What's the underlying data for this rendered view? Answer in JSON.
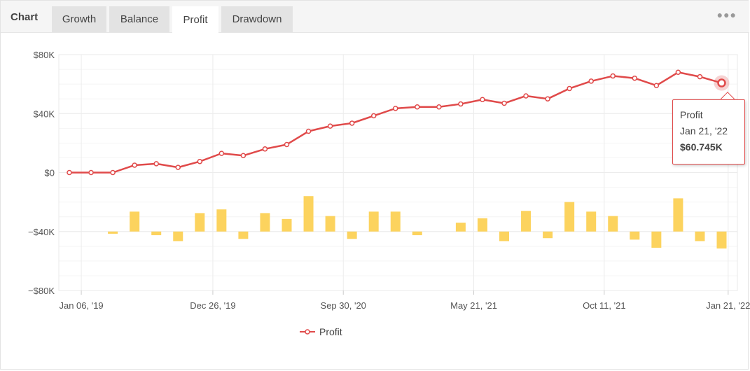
{
  "tabs": {
    "title": "Chart",
    "items": [
      {
        "label": "Growth",
        "active": false
      },
      {
        "label": "Balance",
        "active": false
      },
      {
        "label": "Profit",
        "active": true
      },
      {
        "label": "Drawdown",
        "active": false
      }
    ],
    "menu_icon": "more-dots-icon"
  },
  "colors": {
    "line": "#e04a4a",
    "bar": "#fcd35e",
    "grid": "#ececec"
  },
  "chart_data": {
    "type": "bar+line",
    "x_tick_labels": [
      "Jan 06, '19",
      "Dec 26, '19",
      "Sep 30, '20",
      "May 21, '21",
      "Oct 11, '21",
      "Jan 21, '22"
    ],
    "y_tick_labels": [
      "$80K",
      "$40K",
      "$0",
      "−$40K",
      "−$80K"
    ],
    "ylim": [
      -80000,
      80000
    ],
    "grid": true,
    "legend_position": "bottom",
    "series": [
      {
        "name": "Profit",
        "type": "line",
        "values": [
          0,
          0,
          0,
          5000,
          6000,
          3500,
          7500,
          13000,
          11500,
          16000,
          19000,
          28000,
          31500,
          33500,
          38500,
          43500,
          44500,
          44500,
          46500,
          49500,
          47000,
          52000,
          50000,
          57000,
          62000,
          65500,
          64000,
          59000,
          68000,
          65000,
          60745
        ]
      },
      {
        "type": "bar",
        "values": [
          0,
          0,
          -1500,
          13500,
          -2500,
          -6500,
          12500,
          15000,
          -5000,
          12500,
          8500,
          24000,
          10500,
          -5000,
          13500,
          13500,
          -2500,
          0,
          6000,
          9000,
          -6500,
          14000,
          -4500,
          20000,
          13500,
          10500,
          -5500,
          -11000,
          22500,
          -6500,
          -11500
        ]
      }
    ]
  },
  "tooltip": {
    "series": "Profit",
    "date": "Jan 21, '22",
    "value": "$60.745K"
  },
  "legend": {
    "label": "Profit",
    "icon": "line-marker-icon"
  }
}
